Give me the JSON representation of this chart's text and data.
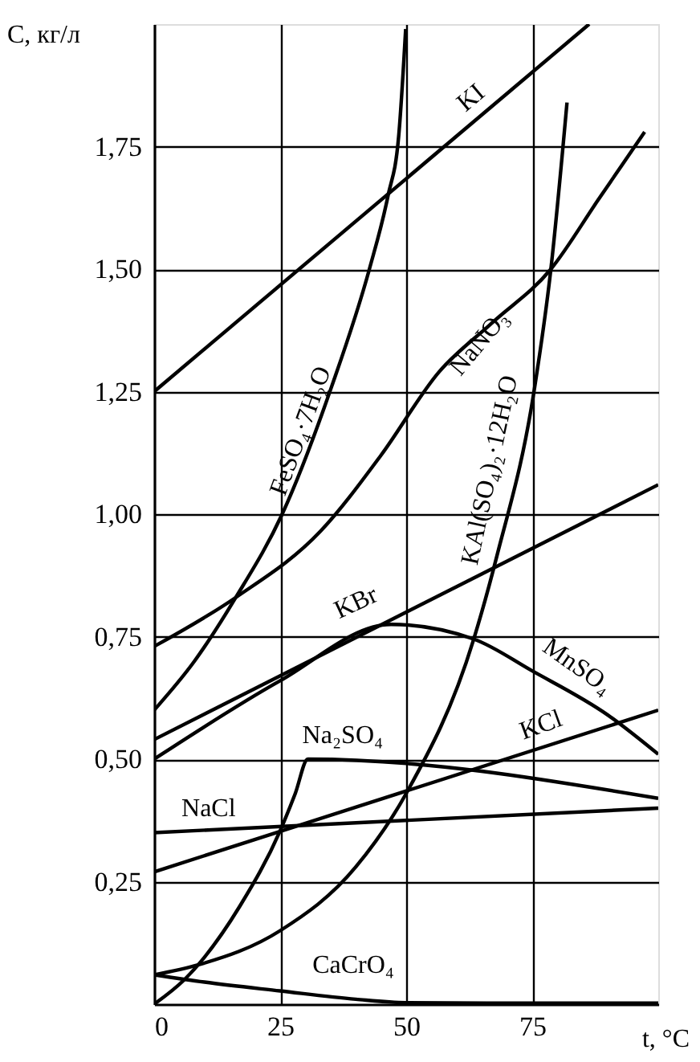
{
  "chart_data": {
    "type": "line",
    "xlabel": "t, °C",
    "ylabel": "C, кг/л",
    "xlim": [
      0,
      100
    ],
    "ylim": [
      0,
      2
    ],
    "xticks": [
      0,
      25,
      50,
      75
    ],
    "yticks": [
      {
        "value": 0.25,
        "label": "0,25"
      },
      {
        "value": 0.5,
        "label": "0,50"
      },
      {
        "value": 0.75,
        "label": "0,75"
      },
      {
        "value": 1.0,
        "label": "1,00"
      },
      {
        "value": 1.25,
        "label": "1,25"
      },
      {
        "value": 1.5,
        "label": "1,50"
      },
      {
        "value": 1.75,
        "label": "1,75"
      }
    ],
    "grid": true,
    "marker": "none",
    "line_style": "solid",
    "series": [
      {
        "name": "KI",
        "color": "#000000",
        "x": [
          0,
          86.3
        ],
        "values": [
          1.25,
          2.0
        ]
      },
      {
        "name": "FeSO₄·7H₂O",
        "color": "#000000",
        "x": [
          0,
          8,
          16.2,
          25.4,
          35.2,
          42.7,
          46.4,
          48.5,
          49.9
        ],
        "values": [
          0.6,
          0.7,
          0.83,
          1.0,
          1.26,
          1.5,
          1.65,
          1.77,
          1.99
        ]
      },
      {
        "name": "NaNO₃",
        "color": "#000000",
        "x": [
          0,
          16.2,
          33,
          45,
          56.5,
          67,
          78.7,
          88,
          97.3
        ],
        "values": [
          0.73,
          0.83,
          0.965,
          1.12,
          1.29,
          1.39,
          1.5,
          1.64,
          1.78
        ]
      },
      {
        "name": "KAl(SO₄)₂·12H₂O",
        "color": "#000000",
        "x": [
          0,
          8.7,
          25,
          40,
          50,
          63.4,
          68,
          75.5,
          78.7,
          81.9
        ],
        "values": [
          0.06,
          0.08,
          0.15,
          0.28,
          0.43,
          0.745,
          0.915,
          1.26,
          1.5,
          1.84
        ]
      },
      {
        "name": "KBr",
        "color": "#000000",
        "x": [
          0,
          100
        ],
        "values": [
          0.54,
          1.06
        ]
      },
      {
        "name": "MnSO₄",
        "color": "#000000",
        "x": [
          0,
          25,
          47,
          63.4,
          75,
          90,
          100
        ],
        "values": [
          0.5,
          0.66,
          0.775,
          0.745,
          0.68,
          0.59,
          0.51
        ]
      },
      {
        "name": "Na₂SO₄",
        "color": "#000000",
        "x": [
          0,
          6,
          17,
          25,
          28,
          30.5,
          100
        ],
        "values": [
          0.0,
          0.05,
          0.2,
          0.354,
          0.43,
          0.5,
          0.42
        ]
      },
      {
        "name": "KCl",
        "color": "#000000",
        "x": [
          0,
          100
        ],
        "values": [
          0.27,
          0.6
        ]
      },
      {
        "name": "NaCl",
        "color": "#000000",
        "x": [
          0,
          100
        ],
        "values": [
          0.35,
          0.4
        ]
      },
      {
        "name": "CaCrO₄",
        "color": "#000000",
        "x": [
          0,
          10,
          25,
          40,
          50,
          75,
          100
        ],
        "values": [
          0.06,
          0.045,
          0.027,
          0.01,
          0.003,
          0.002,
          0.002
        ]
      }
    ]
  }
}
